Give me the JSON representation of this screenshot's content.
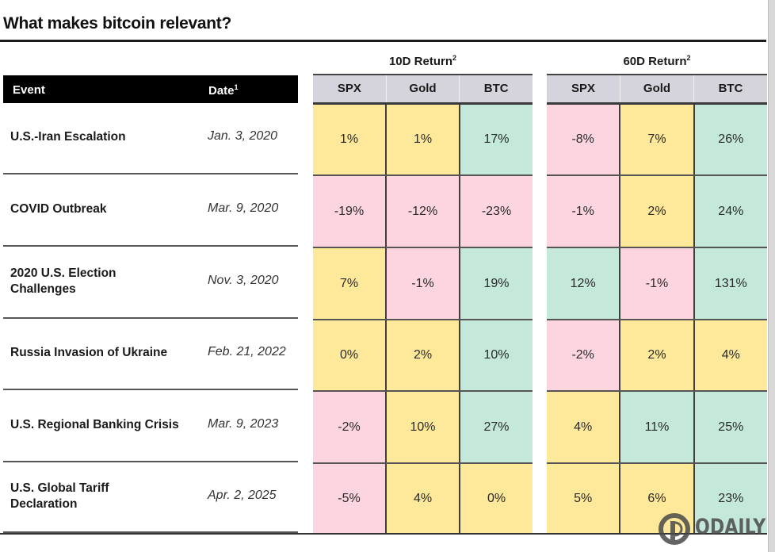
{
  "title": "What makes bitcoin relevant?",
  "table": {
    "event_header": "Event",
    "date_header": "Date",
    "date_header_sup": "1",
    "groups": [
      {
        "label": "10D Return",
        "sup": "2",
        "columns": [
          "SPX",
          "Gold",
          "BTC"
        ]
      },
      {
        "label": "60D Return",
        "sup": "2",
        "columns": [
          "SPX",
          "Gold",
          "BTC"
        ]
      }
    ],
    "rows": [
      {
        "event": "U.S.-Iran Escalation",
        "date": "Jan. 3, 2020",
        "r10": [
          {
            "v": "1%",
            "c": "neutral"
          },
          {
            "v": "1%",
            "c": "neutral"
          },
          {
            "v": "17%",
            "c": "positive"
          }
        ],
        "r60": [
          {
            "v": "-8%",
            "c": "negative"
          },
          {
            "v": "7%",
            "c": "neutral"
          },
          {
            "v": "26%",
            "c": "positive"
          }
        ]
      },
      {
        "event": "COVID Outbreak",
        "date": "Mar. 9, 2020",
        "r10": [
          {
            "v": "-19%",
            "c": "negative"
          },
          {
            "v": "-12%",
            "c": "negative"
          },
          {
            "v": "-23%",
            "c": "negative"
          }
        ],
        "r60": [
          {
            "v": "-1%",
            "c": "negative"
          },
          {
            "v": "2%",
            "c": "neutral"
          },
          {
            "v": "24%",
            "c": "positive"
          }
        ]
      },
      {
        "event": "2020 U.S. Election Challenges",
        "event_lines": [
          "2020 U.S. Election",
          "Challenges"
        ],
        "date": "Nov. 3, 2020",
        "r10": [
          {
            "v": "7%",
            "c": "neutral"
          },
          {
            "v": "-1%",
            "c": "negative"
          },
          {
            "v": "19%",
            "c": "positive"
          }
        ],
        "r60": [
          {
            "v": "12%",
            "c": "positive"
          },
          {
            "v": "-1%",
            "c": "negative"
          },
          {
            "v": "131%",
            "c": "positive"
          }
        ]
      },
      {
        "event": "Russia Invasion of Ukraine",
        "date": "Feb. 21, 2022",
        "r10": [
          {
            "v": "0%",
            "c": "neutral"
          },
          {
            "v": "2%",
            "c": "neutral"
          },
          {
            "v": "10%",
            "c": "positive"
          }
        ],
        "r60": [
          {
            "v": "-2%",
            "c": "negative"
          },
          {
            "v": "2%",
            "c": "neutral"
          },
          {
            "v": "4%",
            "c": "neutral"
          }
        ]
      },
      {
        "event": "U.S. Regional Banking Crisis",
        "date": "Mar. 9, 2023",
        "r10": [
          {
            "v": "-2%",
            "c": "negative"
          },
          {
            "v": "10%",
            "c": "neutral"
          },
          {
            "v": "27%",
            "c": "positive"
          }
        ],
        "r60": [
          {
            "v": "4%",
            "c": "neutral"
          },
          {
            "v": "11%",
            "c": "positive"
          },
          {
            "v": "25%",
            "c": "positive"
          }
        ]
      },
      {
        "event": "U.S. Global Tariff Declaration",
        "event_lines": [
          "U.S. Global Tariff",
          "Declaration"
        ],
        "date": "Apr. 2, 2025",
        "r10": [
          {
            "v": "-5%",
            "c": "negative"
          },
          {
            "v": "4%",
            "c": "neutral"
          },
          {
            "v": "0%",
            "c": "neutral"
          }
        ],
        "r60": [
          {
            "v": "5%",
            "c": "neutral"
          },
          {
            "v": "6%",
            "c": "neutral"
          },
          {
            "v": "23%",
            "c": "positive"
          }
        ]
      }
    ]
  },
  "colors": {
    "negative": "#fdd5df",
    "neutral": "#fee89a",
    "positive": "#c4e8da",
    "header_bg": "#d5d4dc",
    "event_header_bg": "#000000"
  },
  "watermark": {
    "text": "ODAILY",
    "icon": "odaily-logo-icon"
  }
}
